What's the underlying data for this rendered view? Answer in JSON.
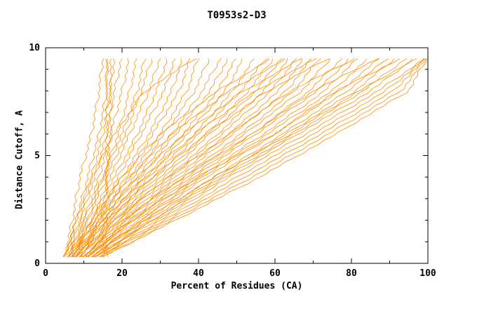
{
  "chart_data": {
    "type": "line",
    "title": "T0953s2-D3",
    "xlabel": "Percent of Residues (CA)",
    "ylabel": "Distance Cutoff, A",
    "xlim": [
      0,
      100
    ],
    "ylim": [
      0,
      10
    ],
    "x_ticks": [
      0,
      20,
      40,
      60,
      80,
      100
    ],
    "y_ticks": [
      0,
      5,
      10
    ],
    "x_minor_step": 10,
    "y_minor_step": 1,
    "grid": false,
    "legend": "none",
    "line_color": "#ff8c00",
    "curve_y_levels": [
      0.3,
      2,
      4,
      6,
      8,
      9.6
    ],
    "curves": [
      [
        5,
        8,
        11,
        14,
        16,
        16
      ],
      [
        5,
        9,
        12,
        15,
        17,
        18
      ],
      [
        6,
        9,
        13,
        16,
        18,
        20
      ],
      [
        6,
        10,
        14,
        17,
        20,
        22
      ],
      [
        6,
        10,
        15,
        19,
        22,
        24
      ],
      [
        6,
        11,
        15,
        20,
        24,
        26
      ],
      [
        7,
        11,
        16,
        21,
        25,
        28
      ],
      [
        7,
        12,
        17,
        22,
        27,
        30
      ],
      [
        7,
        12,
        18,
        24,
        29,
        32
      ],
      [
        7,
        13,
        19,
        25,
        31,
        34
      ],
      [
        7,
        13,
        20,
        27,
        33,
        36
      ],
      [
        8,
        14,
        21,
        28,
        35,
        38
      ],
      [
        8,
        14,
        22,
        30,
        37,
        40
      ],
      [
        8,
        15,
        23,
        31,
        39,
        43
      ],
      [
        8,
        15,
        24,
        33,
        41,
        46
      ],
      [
        8,
        16,
        25,
        34,
        43,
        48
      ],
      [
        9,
        16,
        26,
        36,
        45,
        50
      ],
      [
        9,
        17,
        27,
        37,
        47,
        52
      ],
      [
        9,
        17,
        28,
        39,
        49,
        55
      ],
      [
        9,
        18,
        29,
        40,
        51,
        58
      ],
      [
        9,
        18,
        30,
        42,
        53,
        60
      ],
      [
        10,
        19,
        31,
        43,
        55,
        62
      ],
      [
        10,
        19,
        32,
        45,
        57,
        64
      ],
      [
        10,
        20,
        33,
        46,
        59,
        66
      ],
      [
        10,
        21,
        34,
        48,
        61,
        68
      ],
      [
        11,
        21,
        35,
        49,
        63,
        70
      ],
      [
        11,
        22,
        36,
        51,
        65,
        72
      ],
      [
        11,
        23,
        37,
        52,
        67,
        75
      ],
      [
        11,
        23,
        38,
        54,
        69,
        78
      ],
      [
        12,
        24,
        39,
        55,
        71,
        80
      ],
      [
        12,
        25,
        40,
        57,
        73,
        82
      ],
      [
        12,
        25,
        41,
        58,
        75,
        85
      ],
      [
        12,
        26,
        42,
        60,
        77,
        88
      ],
      [
        13,
        27,
        44,
        62,
        79,
        90
      ],
      [
        13,
        28,
        45,
        63,
        81,
        92
      ],
      [
        13,
        28,
        46,
        65,
        83,
        95
      ],
      [
        13,
        29,
        47,
        66,
        85,
        97
      ],
      [
        14,
        30,
        48,
        68,
        87,
        100
      ],
      [
        14,
        31,
        50,
        70,
        89,
        100
      ],
      [
        14,
        32,
        52,
        72,
        91,
        100
      ],
      [
        15,
        33,
        54,
        74,
        93,
        100
      ],
      [
        15,
        34,
        56,
        76,
        95,
        100
      ],
      [
        5,
        7,
        9,
        12,
        14,
        15
      ],
      [
        15,
        15,
        16,
        16,
        16,
        16
      ],
      [
        16,
        16,
        16,
        17,
        17,
        17
      ],
      [
        6,
        12,
        20,
        30,
        45,
        60
      ],
      [
        7,
        14,
        24,
        36,
        52,
        68
      ],
      [
        8,
        16,
        28,
        42,
        58,
        75
      ],
      [
        9,
        18,
        32,
        48,
        64,
        82
      ],
      [
        10,
        20,
        36,
        54,
        70,
        88
      ],
      [
        11,
        22,
        40,
        60,
        76,
        94
      ],
      [
        12,
        26,
        44,
        64,
        82,
        98
      ],
      [
        6,
        13,
        22,
        33,
        48,
        64
      ],
      [
        7,
        15,
        26,
        39,
        55,
        72
      ],
      [
        5,
        8,
        12,
        18,
        26,
        40
      ]
    ]
  }
}
